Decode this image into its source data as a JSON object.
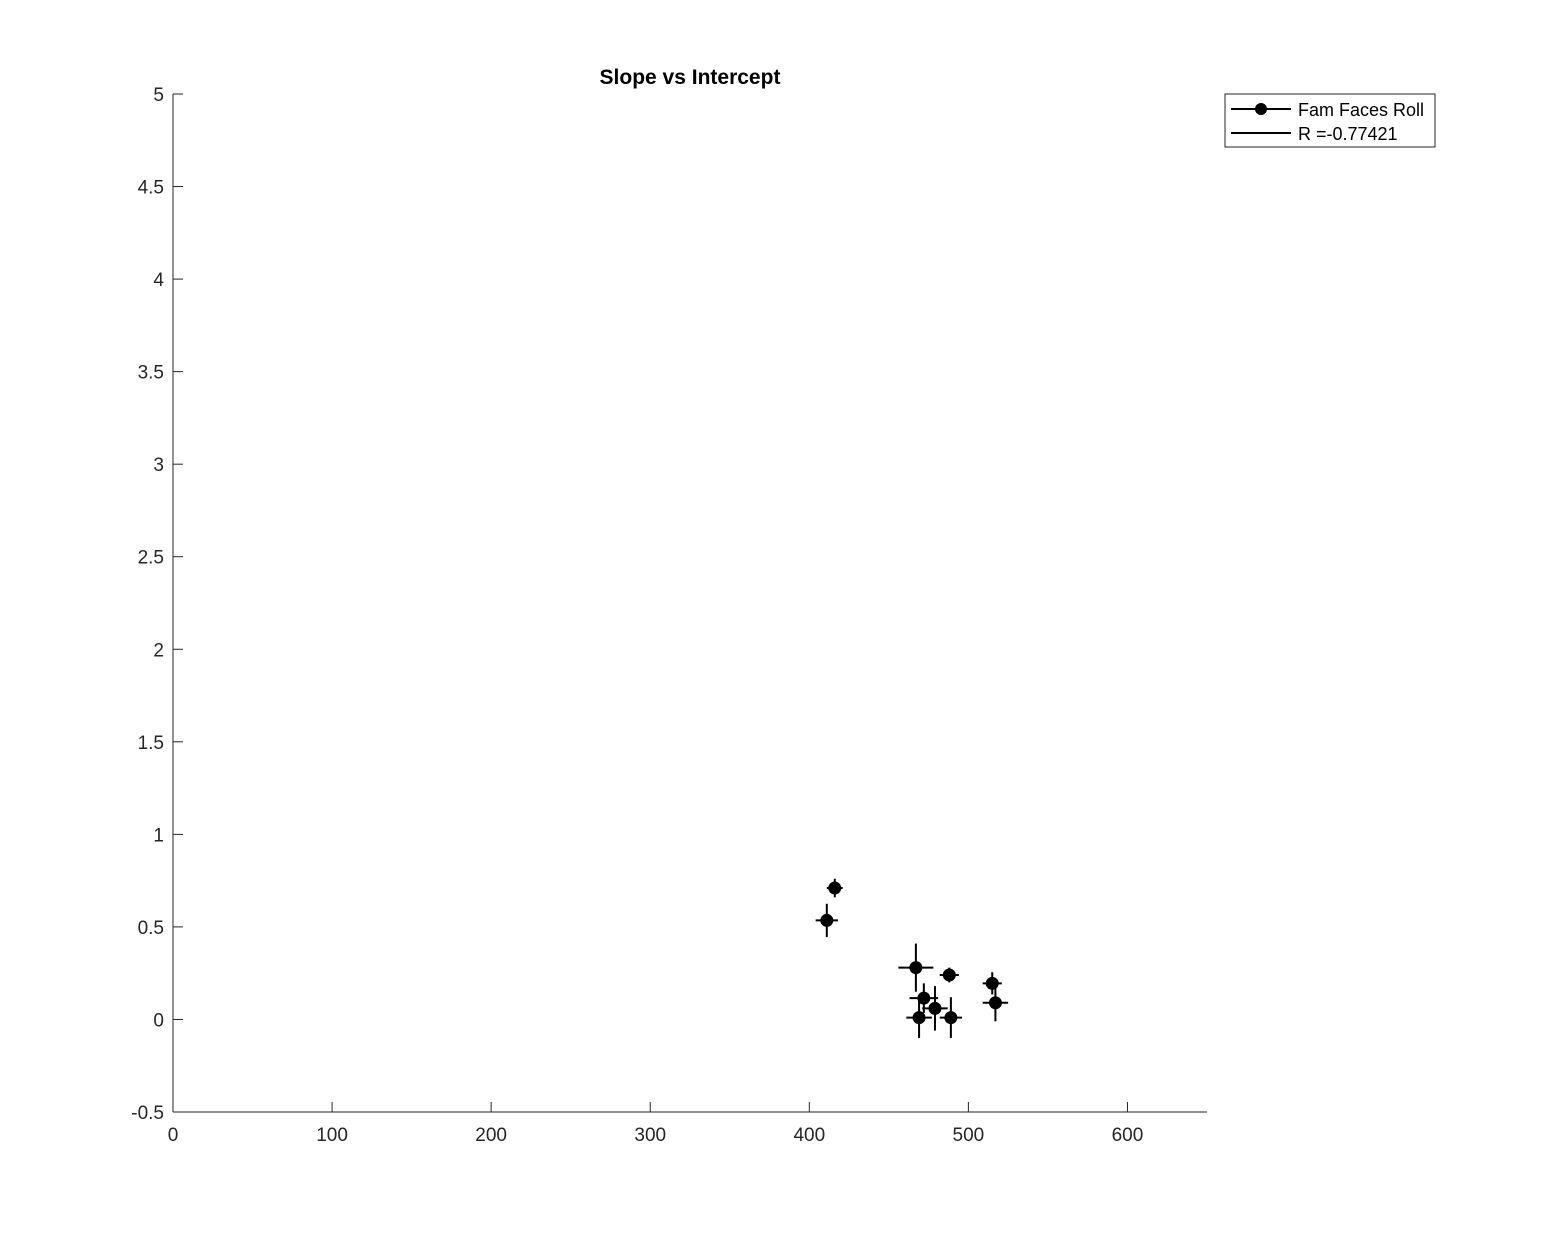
{
  "chart_data": {
    "type": "scatter",
    "title": "Slope vs Intercept",
    "xlabel": "",
    "ylabel": "",
    "xlim": [
      0,
      650
    ],
    "ylim": [
      -0.5,
      5
    ],
    "xticks": [
      0,
      100,
      200,
      300,
      400,
      500,
      600
    ],
    "yticks": [
      -0.5,
      0,
      0.5,
      1,
      1.5,
      2,
      2.5,
      3,
      3.5,
      4,
      4.5,
      5
    ],
    "xtick_labels": [
      "0",
      "100",
      "200",
      "300",
      "400",
      "500",
      "600"
    ],
    "ytick_labels": [
      "-0.5",
      "0",
      "0.5",
      "1",
      "1.5",
      "2",
      "2.5",
      "3",
      "3.5",
      "4",
      "4.5",
      "5"
    ],
    "grid": false,
    "legend_position": "top-right outside axes",
    "colors": {
      "marker": "#000000",
      "axis": "#262626"
    },
    "series": [
      {
        "name": "Fam Faces Roll",
        "marker": "filled-circle",
        "points": [
          {
            "x": 416,
            "y": 0.71,
            "xerr": 5,
            "yerr": 0.05
          },
          {
            "x": 411,
            "y": 0.535,
            "xerr": 7,
            "yerr": 0.09
          },
          {
            "x": 467,
            "y": 0.28,
            "xerr": 11,
            "yerr": 0.13
          },
          {
            "x": 488,
            "y": 0.24,
            "xerr": 6,
            "yerr": 0.04
          },
          {
            "x": 515,
            "y": 0.195,
            "xerr": 6,
            "yerr": 0.06
          },
          {
            "x": 472,
            "y": 0.115,
            "xerr": 9,
            "yerr": 0.08
          },
          {
            "x": 517,
            "y": 0.09,
            "xerr": 8,
            "yerr": 0.1
          },
          {
            "x": 479,
            "y": 0.06,
            "xerr": 8,
            "yerr": 0.12
          },
          {
            "x": 469,
            "y": 0.01,
            "xerr": 8,
            "yerr": 0.11
          },
          {
            "x": 489,
            "y": 0.01,
            "xerr": 7,
            "yerr": 0.11
          }
        ]
      }
    ],
    "legend": [
      {
        "label": "Fam Faces Roll",
        "style": "line-with-marker"
      },
      {
        "label": "R =-0.77421",
        "style": "line"
      }
    ]
  }
}
